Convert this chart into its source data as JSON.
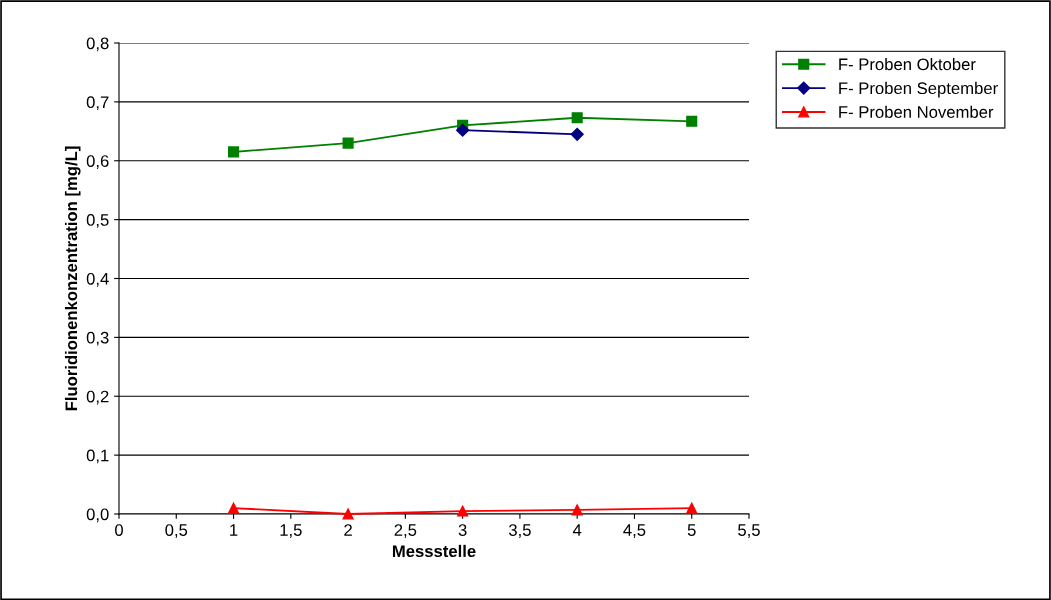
{
  "chart_data": {
    "type": "line",
    "xlabel": "Messstelle",
    "ylabel": "Fluoridionenkonzentration [mg/L]",
    "x": [
      1,
      2,
      3,
      4,
      5
    ],
    "series": [
      {
        "name": "F- Proben Oktober",
        "color": "#008000",
        "marker": "square",
        "values": [
          0.615,
          0.63,
          0.66,
          0.673,
          0.667
        ]
      },
      {
        "name": "F- Proben September",
        "color": "#000080",
        "marker": "diamond",
        "values": [
          null,
          null,
          0.652,
          0.645,
          null
        ]
      },
      {
        "name": "F- Proben November",
        "color": "#ff0000",
        "marker": "triangle",
        "values": [
          0.01,
          0.0,
          0.005,
          0.007,
          0.01
        ]
      }
    ],
    "xlim": [
      0,
      5.5
    ],
    "xticks": [
      0,
      {
        "value": 0.5,
        "label": "0,5"
      },
      1,
      {
        "value": 1.5,
        "label": "1,5"
      },
      2,
      {
        "value": 2.5,
        "label": "2,5"
      },
      3,
      {
        "value": 3.5,
        "label": "3,5"
      },
      4,
      {
        "value": 4.5,
        "label": "4,5"
      },
      5,
      {
        "value": 5.5,
        "label": "5,5"
      }
    ],
    "ylim": [
      0,
      0.8
    ],
    "yticks": [
      {
        "value": 0,
        "label": "0,0"
      },
      {
        "value": 0.1,
        "label": "0,1"
      },
      {
        "value": 0.2,
        "label": "0,2"
      },
      {
        "value": 0.3,
        "label": "0,3"
      },
      {
        "value": 0.4,
        "label": "0,4"
      },
      {
        "value": 0.5,
        "label": "0,5"
      },
      {
        "value": 0.6,
        "label": "0,6"
      },
      {
        "value": 0.7,
        "label": "0,7"
      },
      {
        "value": 0.8,
        "label": "0,8"
      }
    ],
    "grid": "y",
    "legend": "top right",
    "line_style": "solid"
  }
}
